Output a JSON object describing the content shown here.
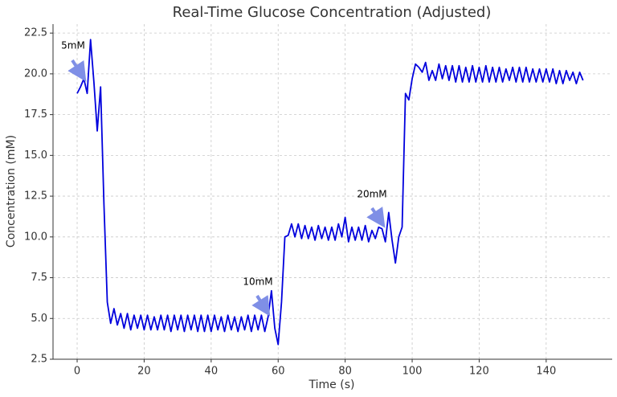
{
  "chart_data": {
    "type": "line",
    "title": "Real-Time Glucose Concentration (Adjusted)",
    "x_label": "Time (s)",
    "y_label": "Concentration (mM)",
    "x": [
      0,
      1,
      2,
      3,
      4,
      5,
      6,
      7,
      8,
      9,
      10,
      11,
      12,
      13,
      14,
      15,
      16,
      17,
      18,
      19,
      20,
      21,
      22,
      23,
      24,
      25,
      26,
      27,
      28,
      29,
      30,
      31,
      32,
      33,
      34,
      35,
      36,
      37,
      38,
      39,
      40,
      41,
      42,
      43,
      44,
      45,
      46,
      47,
      48,
      49,
      50,
      51,
      52,
      53,
      54,
      55,
      56,
      57,
      58,
      59,
      60,
      61,
      62,
      63,
      64,
      65,
      66,
      67,
      68,
      69,
      70,
      71,
      72,
      73,
      74,
      75,
      76,
      77,
      78,
      79,
      80,
      81,
      82,
      83,
      84,
      85,
      86,
      87,
      88,
      89,
      90,
      91,
      92,
      93,
      94,
      95,
      96,
      97,
      98,
      99,
      100,
      101,
      102,
      103,
      104,
      105,
      106,
      107,
      108,
      109,
      110,
      111,
      112,
      113,
      114,
      115,
      116,
      117,
      118,
      119,
      120,
      121,
      122,
      123,
      124,
      125,
      126,
      127,
      128,
      129,
      130,
      131,
      132,
      133,
      134,
      135,
      136,
      137,
      138,
      139,
      140,
      141,
      142,
      143,
      144,
      145,
      146,
      147,
      148,
      149,
      150,
      151
    ],
    "series": [
      {
        "color": "#0000dd",
        "values": [
          18.8,
          19.2,
          19.7,
          18.8,
          22.1,
          19.5,
          16.5,
          19.2,
          12.0,
          6.0,
          4.7,
          5.6,
          4.6,
          5.3,
          4.4,
          5.3,
          4.3,
          5.2,
          4.4,
          5.2,
          4.3,
          5.2,
          4.3,
          5.1,
          4.3,
          5.2,
          4.3,
          5.2,
          4.2,
          5.2,
          4.3,
          5.2,
          4.2,
          5.2,
          4.3,
          5.2,
          4.2,
          5.2,
          4.2,
          5.2,
          4.2,
          5.2,
          4.3,
          5.1,
          4.2,
          5.2,
          4.3,
          5.1,
          4.2,
          5.1,
          4.3,
          5.2,
          4.2,
          5.2,
          4.3,
          5.2,
          4.2,
          5.1,
          6.7,
          4.4,
          3.4,
          6.0,
          10.0,
          10.1,
          10.8,
          10.0,
          10.8,
          9.9,
          10.7,
          9.9,
          10.6,
          9.8,
          10.7,
          9.9,
          10.6,
          9.8,
          10.6,
          9.8,
          10.8,
          10.0,
          11.2,
          9.7,
          10.6,
          9.8,
          10.6,
          9.8,
          10.7,
          9.7,
          10.4,
          9.9,
          10.6,
          10.5,
          9.7,
          11.5,
          9.8,
          8.4,
          10.0,
          10.6,
          18.8,
          18.4,
          19.7,
          20.6,
          20.4,
          20.1,
          20.7,
          19.6,
          20.2,
          19.6,
          20.6,
          19.7,
          20.5,
          19.6,
          20.5,
          19.5,
          20.5,
          19.5,
          20.4,
          19.5,
          20.5,
          19.5,
          20.4,
          19.5,
          20.5,
          19.5,
          20.4,
          19.5,
          20.4,
          19.5,
          20.3,
          19.6,
          20.4,
          19.5,
          20.4,
          19.5,
          20.4,
          19.5,
          20.3,
          19.5,
          20.3,
          19.5,
          20.3,
          19.5,
          20.3,
          19.4,
          20.2,
          19.4,
          20.2,
          19.6,
          20.1,
          19.4,
          20.1,
          19.6
        ]
      }
    ],
    "annotations": [
      "5mM",
      "10mM",
      "20mM"
    ],
    "xlim": [
      -7.2,
      159.7
    ],
    "ylim": [
      2.5,
      23.05
    ],
    "xticks": [
      0,
      20,
      40,
      60,
      80,
      100,
      120,
      140
    ],
    "yticks": [
      2.5,
      {
        "value": 5,
        "label": "5.0"
      },
      7.5,
      {
        "value": 10,
        "label": "10.0"
      },
      12.5,
      {
        "value": 15,
        "label": "15.0"
      },
      17.5,
      {
        "value": 20,
        "label": "20.0"
      },
      22.5
    ],
    "grid": true
  }
}
